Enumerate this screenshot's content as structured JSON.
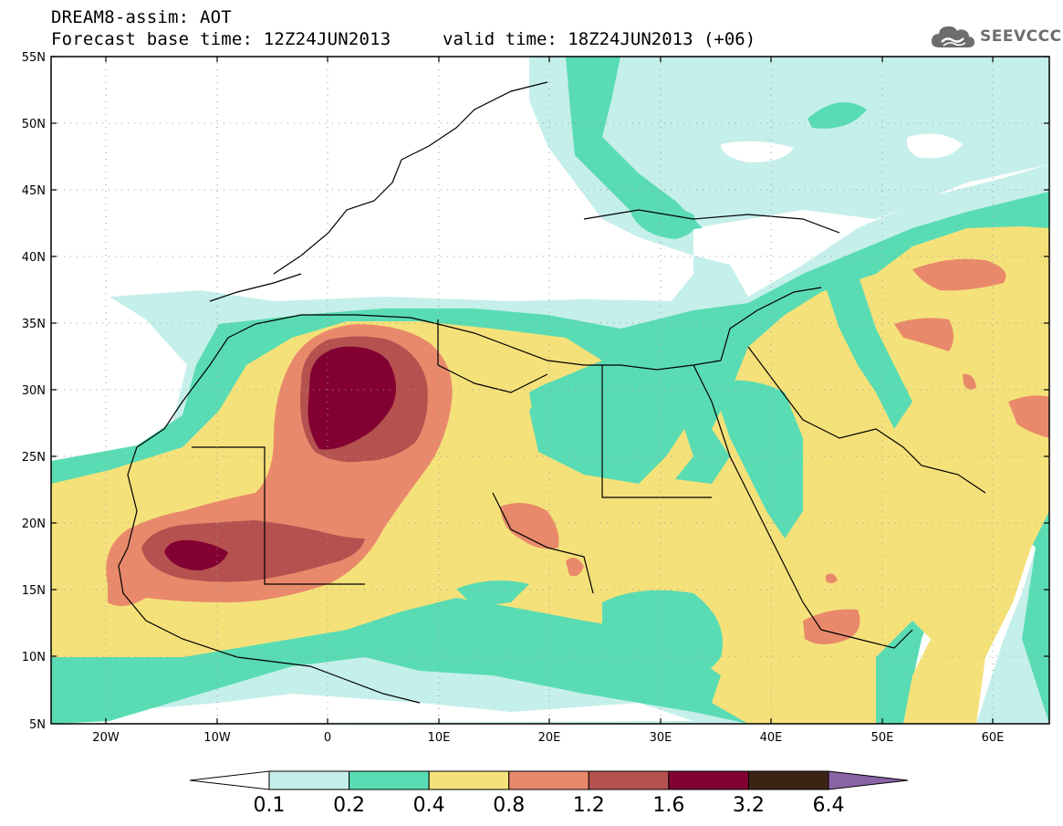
{
  "title": {
    "line1": "DREAM8-assim: AOT",
    "base_time": "Forecast base time: 12Z24JUN2013",
    "valid_time": "valid time: 18Z24JUN2013 (+06)"
  },
  "logo": {
    "text": "SEEVCCC",
    "icon": "cloud-icon"
  },
  "map": {
    "lat_labels": [
      "55N",
      "50N",
      "45N",
      "40N",
      "35N",
      "30N",
      "25N",
      "20N",
      "15N",
      "10N",
      "5N"
    ],
    "lon_labels": [
      "20W",
      "10W",
      "0",
      "10E",
      "20E",
      "30E",
      "40E",
      "50E",
      "60E"
    ],
    "lat_range": [
      5,
      55
    ],
    "lon_range": [
      -25,
      65
    ],
    "colors": {
      "0.1-0.2": "#c5efea",
      "0.2-0.4": "#59dcb3",
      "0.4-0.8": "#f5e17a",
      "0.8-1.2": "#e9896b",
      "1.2-1.6": "#b5524f",
      "1.6-3.2": "#820032",
      "3.2-6.4": "#3c2414",
      ">6.4": "#8a62a6"
    }
  },
  "colorbar": {
    "labels": [
      "0.1",
      "0.2",
      "0.4",
      "0.8",
      "1.2",
      "1.6",
      "3.2",
      "6.4"
    ],
    "colors": [
      "#ffffff",
      "#c5efea",
      "#59dcb3",
      "#f5e17a",
      "#e9896b",
      "#b5524f",
      "#820032",
      "#3c2414",
      "#8a62a6"
    ]
  }
}
